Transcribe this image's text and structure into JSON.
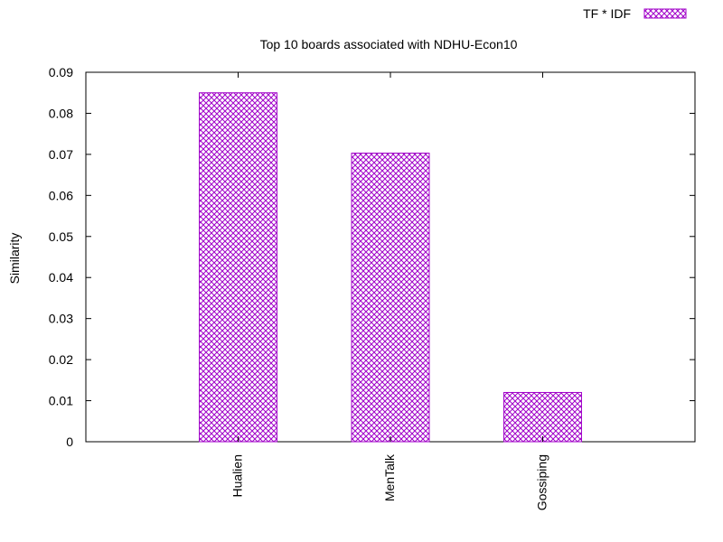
{
  "chart_data": {
    "type": "bar",
    "title": "Top 10 boards associated with NDHU-Econ10",
    "xlabel": "",
    "ylabel": "Similarity",
    "categories": [
      "Hualien",
      "MenTalk",
      "Gossiping"
    ],
    "series": [
      {
        "name": "TF * IDF",
        "values": [
          0.085,
          0.0703,
          0.012
        ]
      }
    ],
    "ylim": [
      0,
      0.09
    ],
    "yticks": [
      "0",
      "0.01",
      "0.02",
      "0.03",
      "0.04",
      "0.05",
      "0.06",
      "0.07",
      "0.08",
      "0.09"
    ],
    "grid": false,
    "legend_position": "top-right",
    "colors": {
      "bar_pattern": "#a000c8",
      "axis": "#000000"
    }
  }
}
